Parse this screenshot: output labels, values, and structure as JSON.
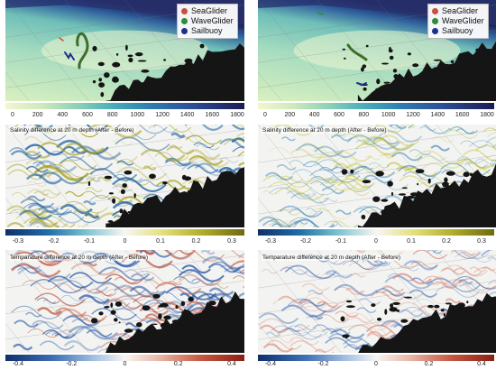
{
  "legend": {
    "items": [
      {
        "label": "SeaGlider",
        "color": "#c8503c"
      },
      {
        "label": "WaveGlider",
        "color": "#2e8b3a"
      },
      {
        "label": "Sailbuoy",
        "color": "#1e2f8c"
      }
    ]
  },
  "panels": {
    "salinity_title": "Salinity difference at 20 m depth (After - Before)",
    "temperature_title": "Temparature difference at 20 m depth (After - Before)"
  },
  "colorbars": {
    "depth": {
      "ticks": [
        "0",
        "200",
        "400",
        "600",
        "800",
        "1000",
        "1200",
        "1400",
        "1600",
        "1800"
      ]
    },
    "salinity": {
      "ticks": [
        "-0.3",
        "-0.2",
        "-0.1",
        "0",
        "0.1",
        "0.2",
        "0.3"
      ]
    },
    "temperature": {
      "ticks": [
        "-0.4",
        "-0.2",
        "0",
        "0.2",
        "0.4"
      ]
    }
  },
  "colors": {
    "land": "#151515",
    "depth_shallow": "#f2f6cf",
    "depth_deep": "#1b1a52",
    "diff_negative": "#0e2f6a",
    "diff_positive_salinity": "#6e6a10",
    "diff_positive_temperature": "#8a1f14"
  }
}
